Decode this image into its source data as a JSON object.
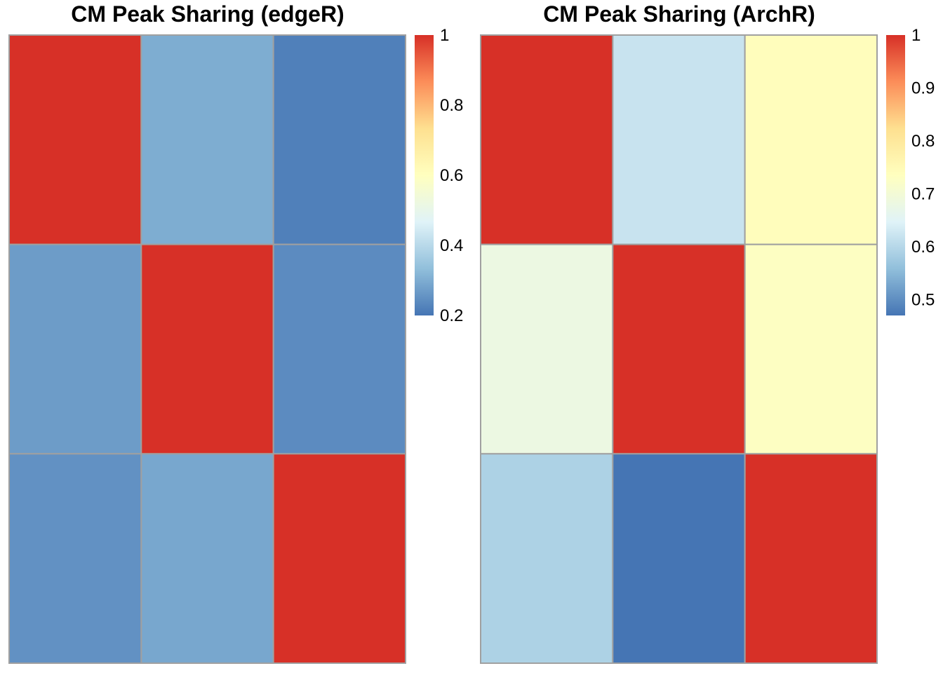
{
  "colors": {
    "scale": [
      "#4575B4",
      "#91BFDB",
      "#E0F3F8",
      "#FFFFBF",
      "#FEE090",
      "#FC8D59",
      "#D73027"
    ],
    "cell_border": "#A0A0A0"
  },
  "chart_data": [
    {
      "type": "heatmap",
      "title": "CM Peak Sharing (edgeR)",
      "rows": 3,
      "cols": 3,
      "values": [
        [
          1.0,
          0.3,
          0.22
        ],
        [
          0.27,
          1.0,
          0.24
        ],
        [
          0.25,
          0.29,
          1.0
        ]
      ],
      "color_range": [
        0.2,
        1.0
      ],
      "legend": {
        "position": "right",
        "ticks": [
          "1",
          "0.8",
          "0.6",
          "0.4",
          "0.2"
        ],
        "tick_values": [
          1.0,
          0.8,
          0.6,
          0.4,
          0.2
        ]
      }
    },
    {
      "type": "heatmap",
      "title": "CM Peak Sharing (ArchR)",
      "rows": 3,
      "cols": 3,
      "values": [
        [
          1.0,
          0.62,
          0.74
        ],
        [
          0.68,
          1.0,
          0.73
        ],
        [
          0.59,
          0.47,
          1.0
        ]
      ],
      "color_range": [
        0.47,
        1.0
      ],
      "legend": {
        "position": "right",
        "ticks": [
          "1",
          "0.9",
          "0.8",
          "0.7",
          "0.6",
          "0.5"
        ],
        "tick_values": [
          1.0,
          0.9,
          0.8,
          0.7,
          0.6,
          0.5
        ]
      }
    }
  ]
}
